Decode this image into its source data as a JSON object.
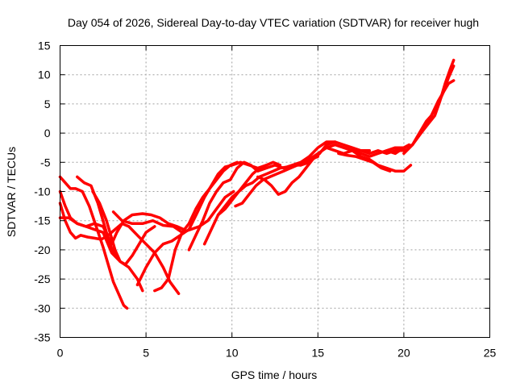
{
  "chart_data": {
    "type": "line",
    "title": "Day 054 of 2026, Sidereal Day-to-day VTEC variation (SDTVAR) for receiver hugh",
    "xlabel": "GPS time / hours",
    "ylabel": "SDTVAR / TECUs",
    "xlim": [
      0,
      25
    ],
    "ylim": [
      -35,
      15
    ],
    "xticks": [
      "0",
      "5",
      "10",
      "15",
      "20",
      "25"
    ],
    "yticks": [
      "15",
      "10",
      "5",
      "0",
      "-5",
      "-10",
      "-15",
      "-20",
      "-25",
      "-30",
      "-35"
    ],
    "grid": true,
    "legend": "none",
    "series_color": "#ff0000",
    "series": [
      {
        "x": [
          0.0,
          0.3,
          0.6,
          0.9,
          1.3,
          1.7,
          2.1,
          2.5,
          2.8,
          3.1,
          3.4,
          3.7,
          3.9
        ],
        "y": [
          -7.5,
          -8.5,
          -9.5,
          -9.5,
          -10.0,
          -12.5,
          -16.0,
          -19.5,
          -22.5,
          -25.5,
          -27.5,
          -29.5,
          -30.0
        ]
      },
      {
        "x": [
          0.0,
          0.3,
          0.6,
          1.0,
          1.5,
          2.0,
          2.5,
          3.0,
          3.5,
          4.0,
          4.5,
          4.8
        ],
        "y": [
          -10.0,
          -12.5,
          -14.5,
          -15.5,
          -16.0,
          -16.5,
          -17.0,
          -20.5,
          -22.0,
          -23.0,
          -25.0,
          -27.0
        ]
      },
      {
        "x": [
          0.0,
          0.5,
          1.0,
          1.5,
          2.0,
          2.5,
          3.0,
          3.3,
          3.7,
          4.2,
          4.8,
          5.3,
          5.8,
          6.3,
          6.8,
          7.2
        ],
        "y": [
          -14.5,
          -14.5,
          -15.5,
          -16.0,
          -15.5,
          -16.0,
          -19.0,
          -17.0,
          -15.0,
          -14.0,
          -13.8,
          -14.0,
          -14.5,
          -15.5,
          -16.0,
          -16.5
        ]
      },
      {
        "x": [
          0.0,
          0.3,
          0.6,
          0.9,
          1.2,
          1.6,
          2.0,
          2.4,
          2.8,
          3.2,
          3.6,
          4.0,
          4.5,
          5.0,
          5.5,
          6.0,
          6.4,
          6.9
        ],
        "y": [
          -12.0,
          -15.0,
          -17.0,
          -18.0,
          -17.5,
          -17.8,
          -18.0,
          -18.2,
          -17.5,
          -16.5,
          -15.5,
          -16.0,
          -17.5,
          -19.0,
          -20.5,
          -23.0,
          -25.5,
          -27.5
        ]
      },
      {
        "x": [
          1.0,
          1.4,
          1.8,
          2.2,
          2.5,
          2.9,
          3.2
        ],
        "y": [
          -7.5,
          -8.5,
          -9.0,
          -12.0,
          -15.0,
          -19.0,
          -21.0
        ]
      },
      {
        "x": [
          1.9,
          2.3,
          2.7,
          3.0,
          3.2,
          3.5,
          3.8,
          4.2,
          4.6,
          5.0,
          5.5
        ],
        "y": [
          -10.0,
          -12.0,
          -15.0,
          -18.0,
          -20.0,
          -22.0,
          -22.5,
          -21.0,
          -19.0,
          -17.0,
          -16.0
        ]
      },
      {
        "x": [
          3.1,
          3.6,
          4.2,
          4.8,
          5.4,
          6.0,
          6.6,
          7.1,
          7.6,
          8.1,
          8.6,
          9.1,
          9.6,
          10.1
        ],
        "y": [
          -13.5,
          -15.0,
          -15.5,
          -15.5,
          -15.0,
          -15.8,
          -16.0,
          -17.0,
          -16.5,
          -16.0,
          -15.0,
          -13.0,
          -11.0,
          -10.0
        ]
      },
      {
        "x": [
          4.5,
          5.0,
          5.5,
          6.0,
          6.5,
          7.0,
          7.5,
          8.0,
          8.4,
          8.8,
          9.2,
          9.6,
          10.0,
          10.5,
          11.0,
          11.5,
          12.0
        ],
        "y": [
          -26.0,
          -23.0,
          -20.5,
          -19.0,
          -18.5,
          -17.5,
          -16.5,
          -13.5,
          -11.0,
          -9.0,
          -7.0,
          -5.8,
          -5.5,
          -5.0,
          -5.5,
          -6.0,
          -5.5
        ]
      },
      {
        "x": [
          5.5,
          5.9,
          6.3,
          6.7,
          7.1,
          7.5,
          7.9,
          8.3,
          8.7,
          9.1,
          9.5,
          9.9,
          10.3
        ],
        "y": [
          -27.0,
          -26.5,
          -25.0,
          -20.0,
          -17.0,
          -15.5,
          -13.0,
          -11.0,
          -9.5,
          -8.0,
          -6.5,
          -5.5,
          -5.0
        ]
      },
      {
        "x": [
          7.5,
          7.9,
          8.3,
          8.7,
          9.1,
          9.5,
          9.9,
          10.3,
          10.7,
          11.1,
          11.5,
          12.0,
          12.5,
          13.0,
          13.5,
          14.0,
          14.5,
          15.0,
          15.5,
          16.0
        ],
        "y": [
          -20.0,
          -17.5,
          -15.0,
          -12.0,
          -10.0,
          -8.5,
          -8.0,
          -6.0,
          -5.0,
          -5.5,
          -6.5,
          -6.0,
          -5.5,
          -6.0,
          -5.5,
          -5.0,
          -4.0,
          -2.5,
          -1.5,
          -1.5
        ]
      },
      {
        "x": [
          8.4,
          8.8,
          9.2,
          9.6,
          10.0,
          10.4,
          10.8,
          11.2,
          11.6,
          12.0,
          12.4,
          12.8,
          13.2,
          13.6,
          14.0,
          14.5
        ],
        "y": [
          -19.0,
          -16.5,
          -14.0,
          -12.5,
          -11.0,
          -10.0,
          -9.0,
          -8.5,
          -7.5,
          -7.0,
          -6.5,
          -6.0,
          -5.8,
          -5.5,
          -5.5,
          -5.0
        ]
      },
      {
        "x": [
          9.2,
          9.6,
          10.0,
          10.4,
          10.8,
          11.2,
          11.6,
          12.0,
          12.4,
          12.8
        ],
        "y": [
          -14.0,
          -13.0,
          -11.5,
          -10.0,
          -8.5,
          -7.0,
          -6.0,
          -5.5,
          -5.0,
          -5.5
        ]
      },
      {
        "x": [
          10.2,
          10.6,
          11.0,
          11.4,
          11.8,
          12.2,
          12.6,
          13.0,
          13.4,
          13.8,
          14.2,
          14.6,
          15.0
        ],
        "y": [
          -12.5,
          -12.0,
          -10.5,
          -9.0,
          -8.0,
          -7.5,
          -7.0,
          -6.5,
          -6.0,
          -5.5,
          -5.0,
          -4.5,
          -4.0
        ]
      },
      {
        "x": [
          11.5,
          11.9,
          12.3,
          12.7,
          13.1,
          13.5,
          13.9,
          14.3,
          14.7,
          15.1,
          15.5,
          16.0,
          16.5,
          17.0,
          17.5,
          18.0
        ],
        "y": [
          -7.5,
          -8.0,
          -9.0,
          -10.5,
          -10.0,
          -8.5,
          -7.5,
          -6.0,
          -4.5,
          -3.5,
          -2.0,
          -1.5,
          -2.0,
          -2.5,
          -3.0,
          -3.0
        ]
      },
      {
        "x": [
          14.0,
          14.5,
          15.0,
          15.5,
          16.0,
          16.5,
          17.0,
          17.5,
          18.0,
          18.5,
          19.0,
          19.5,
          20.0,
          20.4
        ],
        "y": [
          -5.5,
          -4.5,
          -3.5,
          -2.5,
          -2.0,
          -2.5,
          -3.0,
          -4.0,
          -4.5,
          -5.5,
          -6.0,
          -6.5,
          -6.5,
          -5.5
        ]
      },
      {
        "x": [
          15.5,
          16.0,
          16.5,
          17.0,
          17.5,
          18.0,
          18.5,
          19.0,
          19.5,
          20.0,
          20.2
        ],
        "y": [
          -2.5,
          -3.0,
          -3.5,
          -3.0,
          -3.0,
          -3.5,
          -3.0,
          -3.5,
          -3.0,
          -3.0,
          -2.8
        ]
      },
      {
        "x": [
          16.2,
          16.7,
          17.2,
          17.7,
          18.2,
          18.7,
          19.2
        ],
        "y": [
          -3.5,
          -3.8,
          -4.0,
          -4.5,
          -5.0,
          -6.0,
          -6.5
        ]
      },
      {
        "x": [
          17.0,
          17.5,
          18.0,
          18.5,
          19.0,
          19.5,
          20.0,
          20.3
        ],
        "y": [
          -3.0,
          -3.5,
          -4.0,
          -3.5,
          -3.0,
          -3.5,
          -2.5,
          -2.0
        ]
      },
      {
        "x": [
          19.0,
          19.5,
          20.0,
          20.5,
          21.0,
          21.3,
          21.6,
          22.0,
          22.3,
          22.6,
          22.9
        ],
        "y": [
          -3.0,
          -2.5,
          -2.5,
          -2.0,
          0.5,
          2.0,
          3.0,
          5.5,
          7.0,
          8.5,
          9.0
        ]
      },
      {
        "x": [
          20.0,
          20.5,
          21.0,
          21.4,
          21.8,
          22.1,
          22.4,
          22.7,
          22.9
        ],
        "y": [
          -3.5,
          -2.0,
          0.0,
          1.5,
          3.0,
          5.5,
          8.5,
          11.0,
          12.5
        ]
      },
      {
        "x": [
          21.2,
          21.6,
          22.0,
          22.3,
          22.6,
          22.9
        ],
        "y": [
          1.0,
          3.0,
          5.0,
          7.0,
          9.5,
          11.5
        ]
      }
    ]
  }
}
